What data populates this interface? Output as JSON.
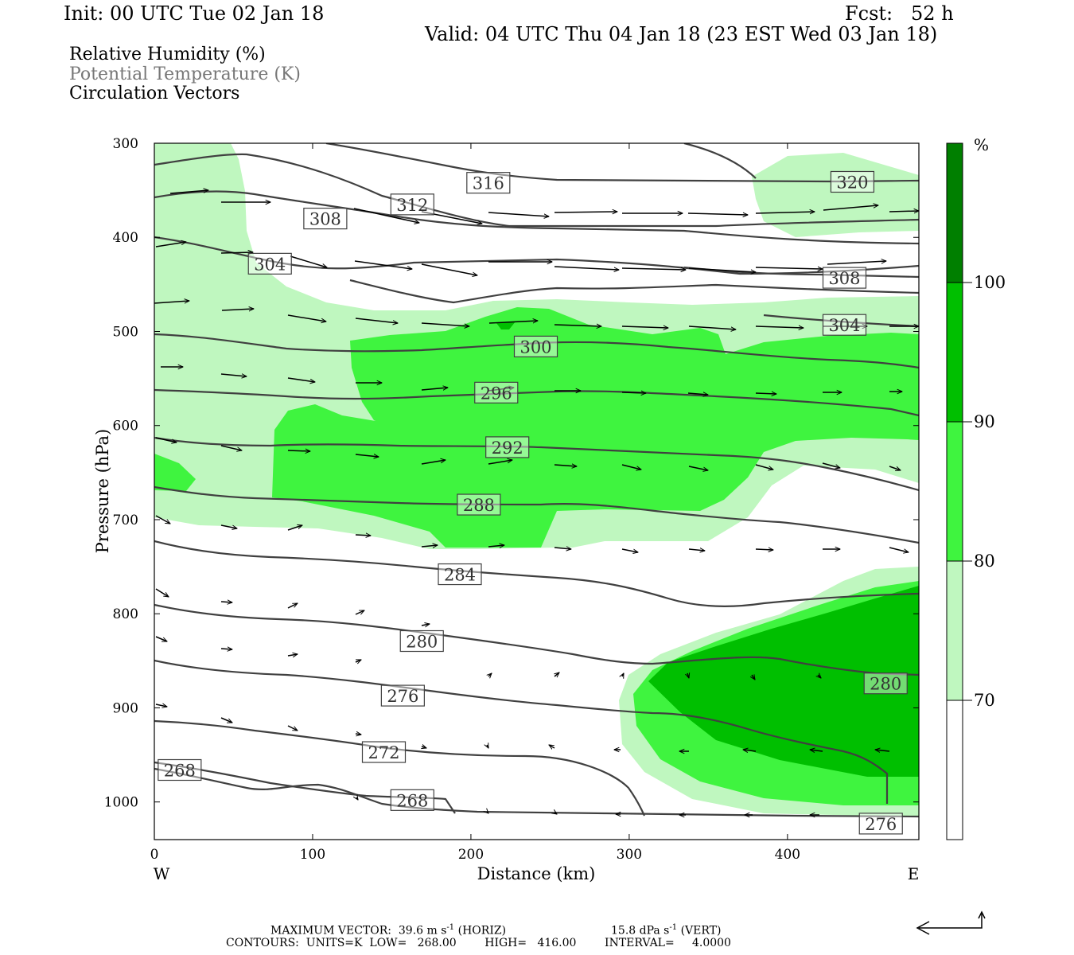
{
  "header": {
    "init": "Init: 00 UTC Tue 02 Jan 18",
    "fcst": "Fcst:   52 h",
    "valid": "Valid: 04 UTC Thu 04 Jan 18 (23 EST Wed 03 Jan 18)",
    "field1": "Relative Humidity (%)",
    "field2": "Potential Temperature (K)",
    "field3": "Circulation Vectors"
  },
  "colors": {
    "rh_70_80": "#bff7bf",
    "rh_80_90": "#3ff43f",
    "rh_90_100": "#00bf00",
    "rh_100": "#007f00",
    "contour": "#404040"
  },
  "chart_data": {
    "type": "cross-section",
    "xlabel": "Distance (km)",
    "ylabel": "Pressure (hPa)",
    "x_ticks": [
      0,
      100,
      200,
      300,
      400
    ],
    "y_ticks": [
      300,
      400,
      500,
      600,
      700,
      800,
      900,
      1000
    ],
    "xlim": [
      0,
      483
    ],
    "ylim": [
      300,
      1040
    ],
    "x_end_labels": {
      "left": "W",
      "right": "E"
    },
    "colorbar": {
      "unit": "%",
      "levels": [
        "70",
        "80",
        "90",
        "100"
      ]
    },
    "theta_contour_labels": [
      {
        "label": "316",
        "x": 211,
        "p": 342
      },
      {
        "label": "312",
        "x": 163,
        "p": 365
      },
      {
        "label": "308",
        "x": 108,
        "p": 380
      },
      {
        "label": "304",
        "x": 73,
        "p": 428
      },
      {
        "label": "320",
        "x": 441,
        "p": 341
      },
      {
        "label": "308",
        "x": 436,
        "p": 443
      },
      {
        "label": "304",
        "x": 436,
        "p": 493
      },
      {
        "label": "300",
        "x": 241,
        "p": 516
      },
      {
        "label": "296",
        "x": 216,
        "p": 565
      },
      {
        "label": "292",
        "x": 223,
        "p": 623
      },
      {
        "label": "288",
        "x": 205,
        "p": 684
      },
      {
        "label": "284",
        "x": 193,
        "p": 758
      },
      {
        "label": "280",
        "x": 169,
        "p": 829
      },
      {
        "label": "276",
        "x": 157,
        "p": 887
      },
      {
        "label": "272",
        "x": 145,
        "p": 947
      },
      {
        "label": "268",
        "x": 16,
        "p": 966
      },
      {
        "label": "268",
        "x": 163,
        "p": 998
      },
      {
        "label": "280",
        "x": 462,
        "p": 874
      },
      {
        "label": "276",
        "x": 459,
        "p": 1023
      }
    ]
  },
  "footer": {
    "max_vector": "MAXIMUM VECTOR:  39.6 m s",
    "horiz": "(HORIZ)",
    "vert_val": "15.8 dPa s",
    "vert": "(VERT)",
    "exp": "-1",
    "contours": "CONTOURS:  UNITS=K  LOW=   268.00        HIGH=   416.00        INTERVAL=     4.0000"
  }
}
